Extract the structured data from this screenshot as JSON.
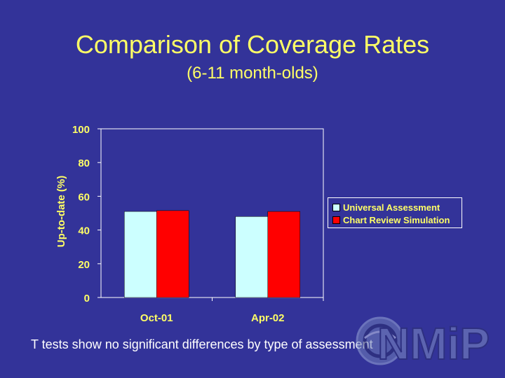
{
  "slide": {
    "title": "Comparison of Coverage Rates",
    "subtitle": "(6-11 month-olds)",
    "footnote": "T tests show no significant differences by type of assessment",
    "logo_text": "NMiP"
  },
  "colors": {
    "background": "#333399",
    "text_yellow": "#ffff66",
    "series_universal": "#ccffff",
    "series_chart_review": "#ff0000"
  },
  "chart_data": {
    "type": "bar",
    "categories": [
      "Oct-01",
      "Apr-02"
    ],
    "series": [
      {
        "name": "Universal Assessment",
        "values": [
          51,
          48
        ],
        "color": "#ccffff"
      },
      {
        "name": "Chart Review Simulation",
        "values": [
          51.5,
          51
        ],
        "color": "#ff0000"
      }
    ],
    "ylabel": "Up-to-date (%)",
    "xlabel": "",
    "ylim": [
      0,
      100
    ],
    "yticks": [
      "0",
      "20",
      "40",
      "60",
      "80",
      "100"
    ],
    "legend_position": "right",
    "grid": false
  }
}
